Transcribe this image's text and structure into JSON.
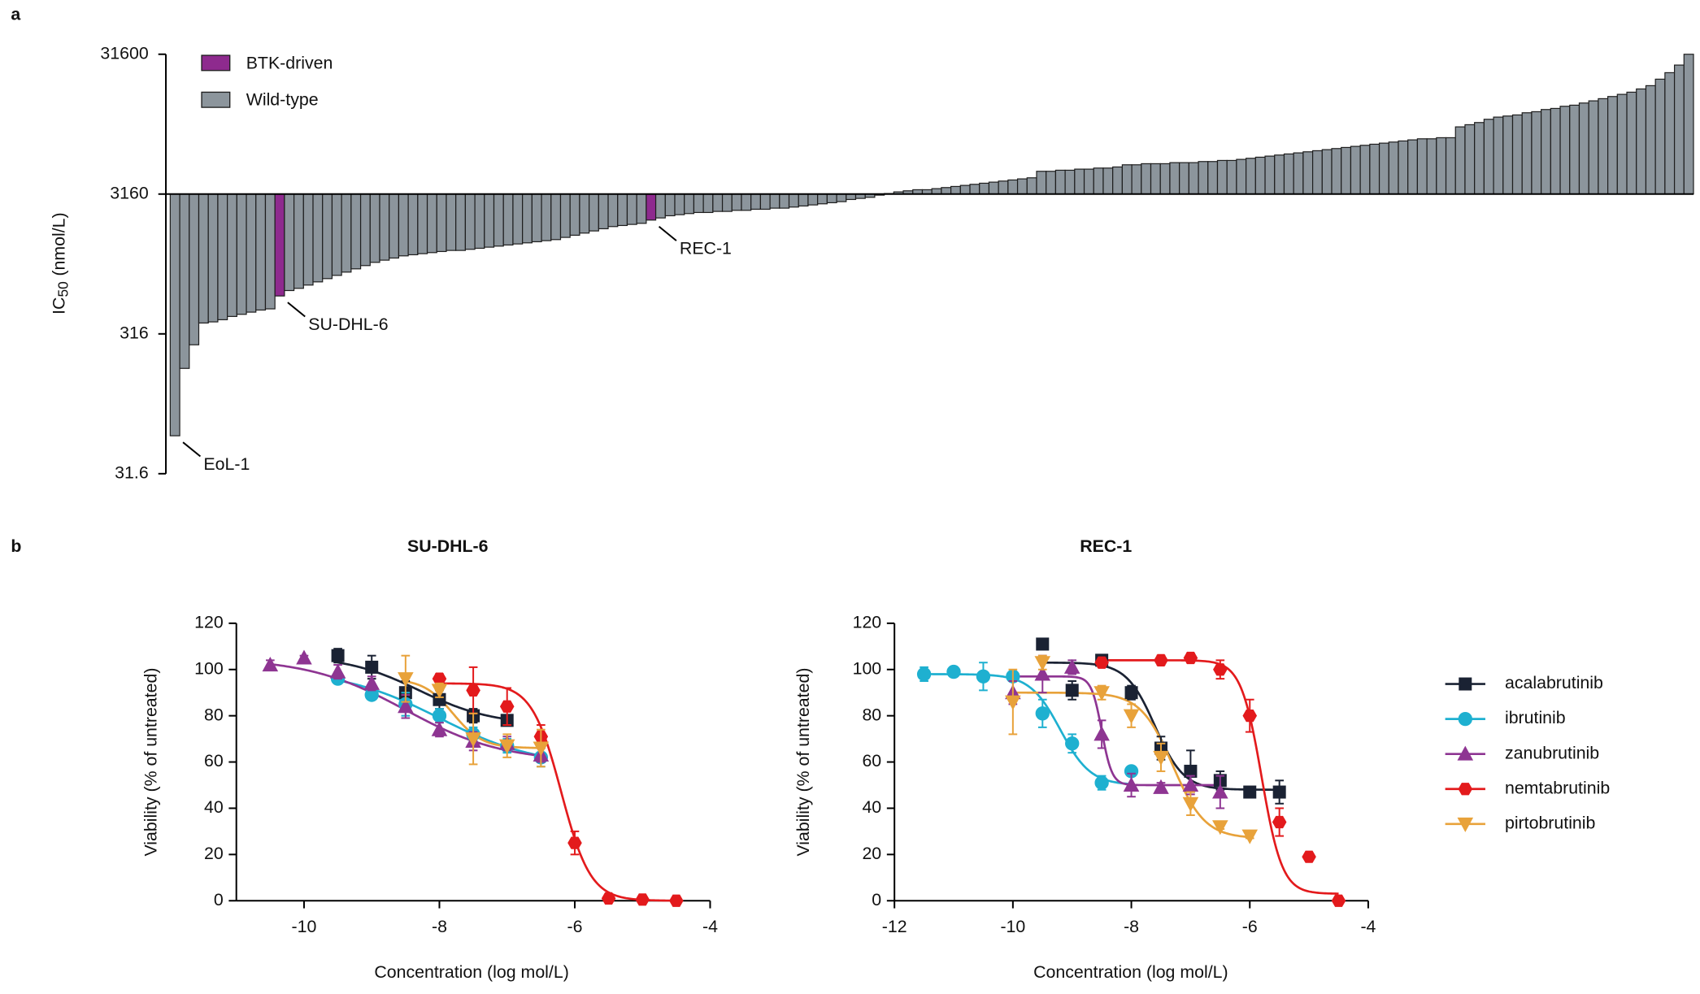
{
  "panel_labels": [
    "a",
    "b"
  ],
  "chart_data": [
    {
      "type": "bar",
      "ylabel": {
        "main": "IC",
        "sub": "50",
        "unit": "(nmol/L)"
      },
      "log": true,
      "ylim": [
        31.6,
        31600
      ],
      "yticks": [
        31.6,
        316,
        3160,
        31600
      ],
      "baseline": 3160,
      "series": [
        {
          "name": "BTK-driven",
          "color": "#8e2a8e",
          "indices": [
            11,
            50
          ]
        },
        {
          "name": "Wild-type",
          "color": "#8c959c"
        }
      ],
      "categories": [
        "EoL-1",
        null,
        null,
        null,
        null,
        null,
        null,
        null,
        null,
        null,
        null,
        "SU-DHL-6",
        null,
        null,
        null,
        null,
        null,
        null,
        null,
        null,
        null,
        null,
        null,
        null,
        null,
        null,
        null,
        null,
        null,
        null,
        null,
        null,
        null,
        null,
        null,
        null,
        null,
        null,
        null,
        null,
        null,
        null,
        null,
        null,
        null,
        null,
        null,
        null,
        null,
        null,
        "REC-1",
        null,
        null,
        null,
        null,
        null,
        null,
        null,
        null,
        null,
        null,
        null,
        null,
        null,
        null,
        null,
        null,
        null,
        null,
        null,
        null,
        null,
        null,
        null,
        null,
        null,
        null,
        null,
        null,
        null,
        null,
        null,
        null,
        null,
        null,
        null,
        null,
        null,
        null,
        null,
        null,
        null,
        null,
        null,
        null,
        null,
        null,
        null,
        null,
        null,
        null,
        null,
        null,
        null,
        null,
        null,
        null,
        null,
        null,
        null,
        null,
        null,
        null,
        null,
        null,
        null,
        null,
        null,
        null,
        null,
        null,
        null,
        null,
        null,
        null,
        null,
        null,
        null,
        null,
        null,
        null,
        null,
        null,
        null,
        null,
        null,
        null,
        null,
        null,
        null,
        null,
        null,
        null,
        null,
        null,
        null,
        null,
        null,
        null,
        null,
        null,
        null,
        null,
        null,
        null,
        null,
        null,
        null,
        null,
        null
      ],
      "values": [
        59,
        179,
        264,
        378,
        385,
        399,
        421,
        436,
        452,
        468,
        477,
        590,
        645,
        669,
        706,
        744,
        785,
        828,
        874,
        922,
        973,
        1026,
        1064,
        1102,
        1142,
        1163,
        1184,
        1205,
        1227,
        1249,
        1249,
        1272,
        1294,
        1318,
        1341,
        1366,
        1390,
        1415,
        1441,
        1467,
        1493,
        1548,
        1604,
        1662,
        1722,
        1785,
        1850,
        1883,
        1917,
        1951,
        2059,
        2133,
        2211,
        2250,
        2292,
        2333,
        2333,
        2375,
        2375,
        2417,
        2417,
        2461,
        2461,
        2506,
        2506,
        2551,
        2597,
        2643,
        2691,
        2740,
        2789,
        2890,
        2942,
        2995,
        3104,
        3188,
        3275,
        3334,
        3394,
        3394,
        3455,
        3517,
        3581,
        3645,
        3711,
        3778,
        3846,
        3915,
        3985,
        4057,
        4130,
        4598,
        4598,
        4680,
        4680,
        4765,
        4765,
        4849,
        4849,
        4937,
        5117,
        5117,
        5210,
        5210,
        5210,
        5303,
        5303,
        5303,
        5399,
        5399,
        5496,
        5496,
        5595,
        5696,
        5799,
        5903,
        6009,
        6117,
        6227,
        6338,
        6453,
        6568,
        6687,
        6808,
        6931,
        7055,
        7182,
        7310,
        7443,
        7577,
        7713,
        7851,
        7851,
        7994,
        7994,
        9556,
        9903,
        10264,
        10830,
        11223,
        11424,
        11631,
        12054,
        12269,
        12717,
        12945,
        13415,
        13658,
        14154,
        14669,
        15202,
        15754,
        16326,
        16920,
        17844,
        18835,
        20962,
        23329,
        26441,
        31600
      ]
    },
    {
      "type": "scatter",
      "title": "SU-DHL-6",
      "xlabel": "Concentration (log mol/L)",
      "ylabel": "Viability (% of untreated)",
      "xlim": [
        -11,
        -4
      ],
      "xticks": [
        -10,
        -8,
        -6,
        -4
      ],
      "ylim": [
        0,
        120
      ],
      "yticks": [
        0,
        20,
        40,
        60,
        80,
        100,
        120
      ],
      "series": [
        {
          "color": "#1a2233",
          "marker": "square",
          "x": [
            -9.5,
            -9,
            -8.5,
            -8,
            -7.5,
            -7
          ],
          "values": [
            106,
            101,
            90,
            87,
            80,
            78
          ],
          "errors": [
            3,
            5,
            5,
            4,
            3,
            2
          ],
          "fit": {
            "bottom": 76,
            "top": 106,
            "logIC50": -8.3,
            "hill": 0.8
          }
        },
        {
          "color": "#1eb0d0",
          "marker": "circle",
          "x": [
            -9.5,
            -9,
            -8.5,
            -8,
            -7.5,
            -7,
            -6.5
          ],
          "values": [
            96,
            89,
            85,
            80,
            72,
            67,
            62
          ],
          "errors": [
            2,
            2,
            5,
            3,
            3,
            3,
            4
          ],
          "fit": {
            "bottom": 58,
            "top": 100,
            "logIC50": -8,
            "hill": 0.6
          }
        },
        {
          "color": "#8e3592",
          "marker": "triangle-up",
          "x": [
            -10.5,
            -10,
            -9.5,
            -9,
            -8.5,
            -8,
            -7.5,
            -7,
            -6.5
          ],
          "values": [
            102,
            105,
            99,
            94,
            84,
            74,
            69,
            68,
            63
          ],
          "errors": [
            2,
            1,
            3,
            3,
            5,
            3,
            4,
            3,
            3
          ],
          "fit": {
            "bottom": 60,
            "top": 105,
            "logIC50": -8.5,
            "hill": 0.6
          }
        },
        {
          "color": "#e31a1c",
          "marker": "hexagon",
          "x": [
            -8,
            -7.5,
            -7,
            -6.5,
            -6,
            -5.5,
            -5,
            -4.5
          ],
          "values": [
            96,
            91,
            84,
            71,
            25,
            1,
            0.5,
            0
          ],
          "errors": [
            2,
            10,
            8,
            5,
            5,
            1,
            1,
            0.5
          ],
          "fit": {
            "bottom": 0,
            "top": 94,
            "logIC50": -6.2,
            "hill": 2
          }
        },
        {
          "color": "#e8a23a",
          "marker": "triangle-down",
          "x": [
            -8.5,
            -8,
            -7.5,
            -7,
            -6.5
          ],
          "values": [
            96,
            91,
            70,
            67,
            66
          ],
          "errors": [
            10,
            3,
            11,
            5,
            8
          ],
          "fit": {
            "bottom": 66,
            "top": 96,
            "logIC50": -7.8,
            "hill": 2
          }
        }
      ]
    },
    {
      "type": "scatter",
      "title": "REC-1",
      "xlabel": "Concentration (log mol/L)",
      "ylabel": "Viability (% of untreated)",
      "xlim": [
        -12,
        -4
      ],
      "xticks": [
        -12,
        -10,
        -8,
        -6,
        -4
      ],
      "ylim": [
        0,
        120
      ],
      "yticks": [
        0,
        20,
        40,
        60,
        80,
        100,
        120
      ],
      "legend": true,
      "series": [
        {
          "name": "acalabrutinib",
          "color": "#1a2233",
          "marker": "square",
          "x": [
            -9.5,
            -9,
            -8.5,
            -8,
            -7.5,
            -7,
            -6.5,
            -6,
            -5.5
          ],
          "values": [
            111,
            91,
            104,
            90,
            66,
            56,
            52,
            47,
            47
          ],
          "errors": [
            2,
            4,
            2,
            3,
            5,
            9,
            4,
            2,
            5
          ],
          "fit": {
            "bottom": 48,
            "top": 103,
            "logIC50": -7.6,
            "hill": 1.8
          }
        },
        {
          "name": "ibrutinib",
          "color": "#1eb0d0",
          "marker": "circle",
          "x": [
            -11.5,
            -11,
            -10.5,
            -10,
            -9.5,
            -9,
            -8.5,
            -8
          ],
          "values": [
            98,
            99,
            97,
            97,
            81,
            68,
            51,
            56
          ],
          "errors": [
            3,
            2,
            6,
            2,
            6,
            4,
            3,
            2
          ],
          "fit": {
            "bottom": 50,
            "top": 98,
            "logIC50": -9.2,
            "hill": 1.7
          }
        },
        {
          "name": "zanubrutinib",
          "color": "#8e3592",
          "marker": "triangle-up",
          "x": [
            -10,
            -9.5,
            -9,
            -8.5,
            -8,
            -7.5,
            -7,
            -6.5
          ],
          "values": [
            90,
            98,
            101,
            72,
            50,
            49,
            50,
            47
          ],
          "errors": [
            5,
            8,
            3,
            6,
            5,
            2,
            4,
            7
          ],
          "fit": {
            "bottom": 50,
            "top": 97,
            "logIC50": -8.5,
            "hill": 5
          }
        },
        {
          "name": "nemtabrutinib",
          "color": "#e31a1c",
          "marker": "hexagon",
          "x": [
            -8.5,
            -7.5,
            -7,
            -6.5,
            -6,
            -5.5,
            -5,
            -4.5
          ],
          "values": [
            103,
            104,
            105,
            100,
            80,
            34,
            19,
            0
          ],
          "errors": [
            2,
            2,
            2,
            4,
            7,
            6,
            1,
            0.5
          ],
          "fit": {
            "bottom": 3,
            "top": 104,
            "logIC50": -5.8,
            "hill": 2.5
          }
        },
        {
          "name": "pirtobrutinib",
          "color": "#e8a23a",
          "marker": "triangle-down",
          "x": [
            -10,
            -9.5,
            -8.5,
            -8,
            -7.5,
            -7,
            -6.5,
            -6
          ],
          "values": [
            86,
            103,
            90,
            80,
            62,
            42,
            32,
            28
          ],
          "errors": [
            14,
            3,
            3,
            5,
            6,
            5,
            1,
            1
          ],
          "fit": {
            "bottom": 27,
            "top": 90,
            "logIC50": -7.3,
            "hill": 1.6
          }
        }
      ]
    }
  ]
}
